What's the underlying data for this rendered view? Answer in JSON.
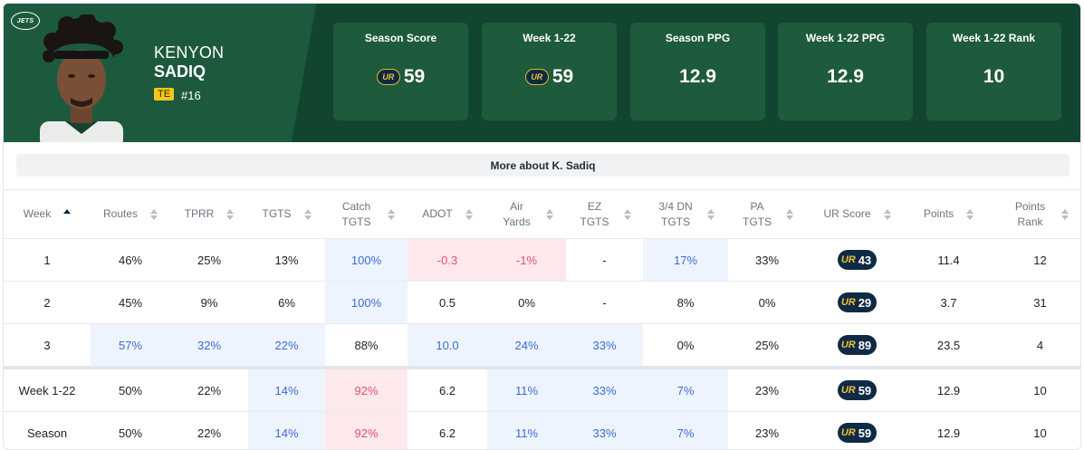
{
  "team": {
    "logo_text": "JETS"
  },
  "player": {
    "first_name": "KENYON",
    "last_name": "SADIQ",
    "position": "TE",
    "number": "#16"
  },
  "stats": [
    {
      "label": "Season Score",
      "value": "59",
      "badge": true
    },
    {
      "label": "Week 1-22",
      "value": "59",
      "badge": true
    },
    {
      "label": "Season PPG",
      "value": "12.9",
      "badge": false
    },
    {
      "label": "Week 1-22 PPG",
      "value": "12.9",
      "badge": false
    },
    {
      "label": "Week 1-22 Rank",
      "value": "10",
      "badge": false
    }
  ],
  "ur_logo_text": "UR",
  "more_button": "More about K. Sadiq",
  "columns": [
    "Week",
    "Routes",
    "TPRR",
    "TGTS",
    "Catch TGTS",
    "ADOT",
    "Air Yards",
    "EZ TGTS",
    "3/4 DN TGTS",
    "PA TGTS",
    "UR Score",
    "Points",
    "Points Rank"
  ],
  "rows": [
    {
      "week": "1",
      "routes": "46%",
      "tprr": "25%",
      "tgts": "13%",
      "catch": "100%",
      "adot": "-0.3",
      "air": "-1%",
      "ez": "-",
      "dn": "17%",
      "pa": "33%",
      "ur": "43",
      "pts": "11.4",
      "rank": "12"
    },
    {
      "week": "2",
      "routes": "45%",
      "tprr": "9%",
      "tgts": "6%",
      "catch": "100%",
      "adot": "0.5",
      "air": "0%",
      "ez": "-",
      "dn": "8%",
      "pa": "0%",
      "ur": "29",
      "pts": "3.7",
      "rank": "31"
    },
    {
      "week": "3",
      "routes": "57%",
      "tprr": "32%",
      "tgts": "22%",
      "catch": "88%",
      "adot": "10.0",
      "air": "24%",
      "ez": "33%",
      "dn": "0%",
      "pa": "25%",
      "ur": "89",
      "pts": "23.5",
      "rank": "4"
    }
  ],
  "summary_rows": [
    {
      "week": "Week 1-22",
      "routes": "50%",
      "tprr": "22%",
      "tgts": "14%",
      "catch": "92%",
      "adot": "6.2",
      "air": "11%",
      "ez": "33%",
      "dn": "7%",
      "pa": "23%",
      "ur": "59",
      "pts": "12.9",
      "rank": "10"
    },
    {
      "week": "Season",
      "routes": "50%",
      "tprr": "22%",
      "tgts": "14%",
      "catch": "92%",
      "adot": "6.2",
      "air": "11%",
      "ez": "33%",
      "dn": "7%",
      "pa": "23%",
      "ur": "59",
      "pts": "12.9",
      "rank": "10"
    }
  ],
  "colors": {
    "header_bg": "#12452f",
    "stat_card": "#1e5a3c",
    "highlight_blue": "#eef4fd",
    "highlight_red": "#fde8ec",
    "badge_bg": "#0e2a44",
    "badge_gold": "#f2c230"
  }
}
